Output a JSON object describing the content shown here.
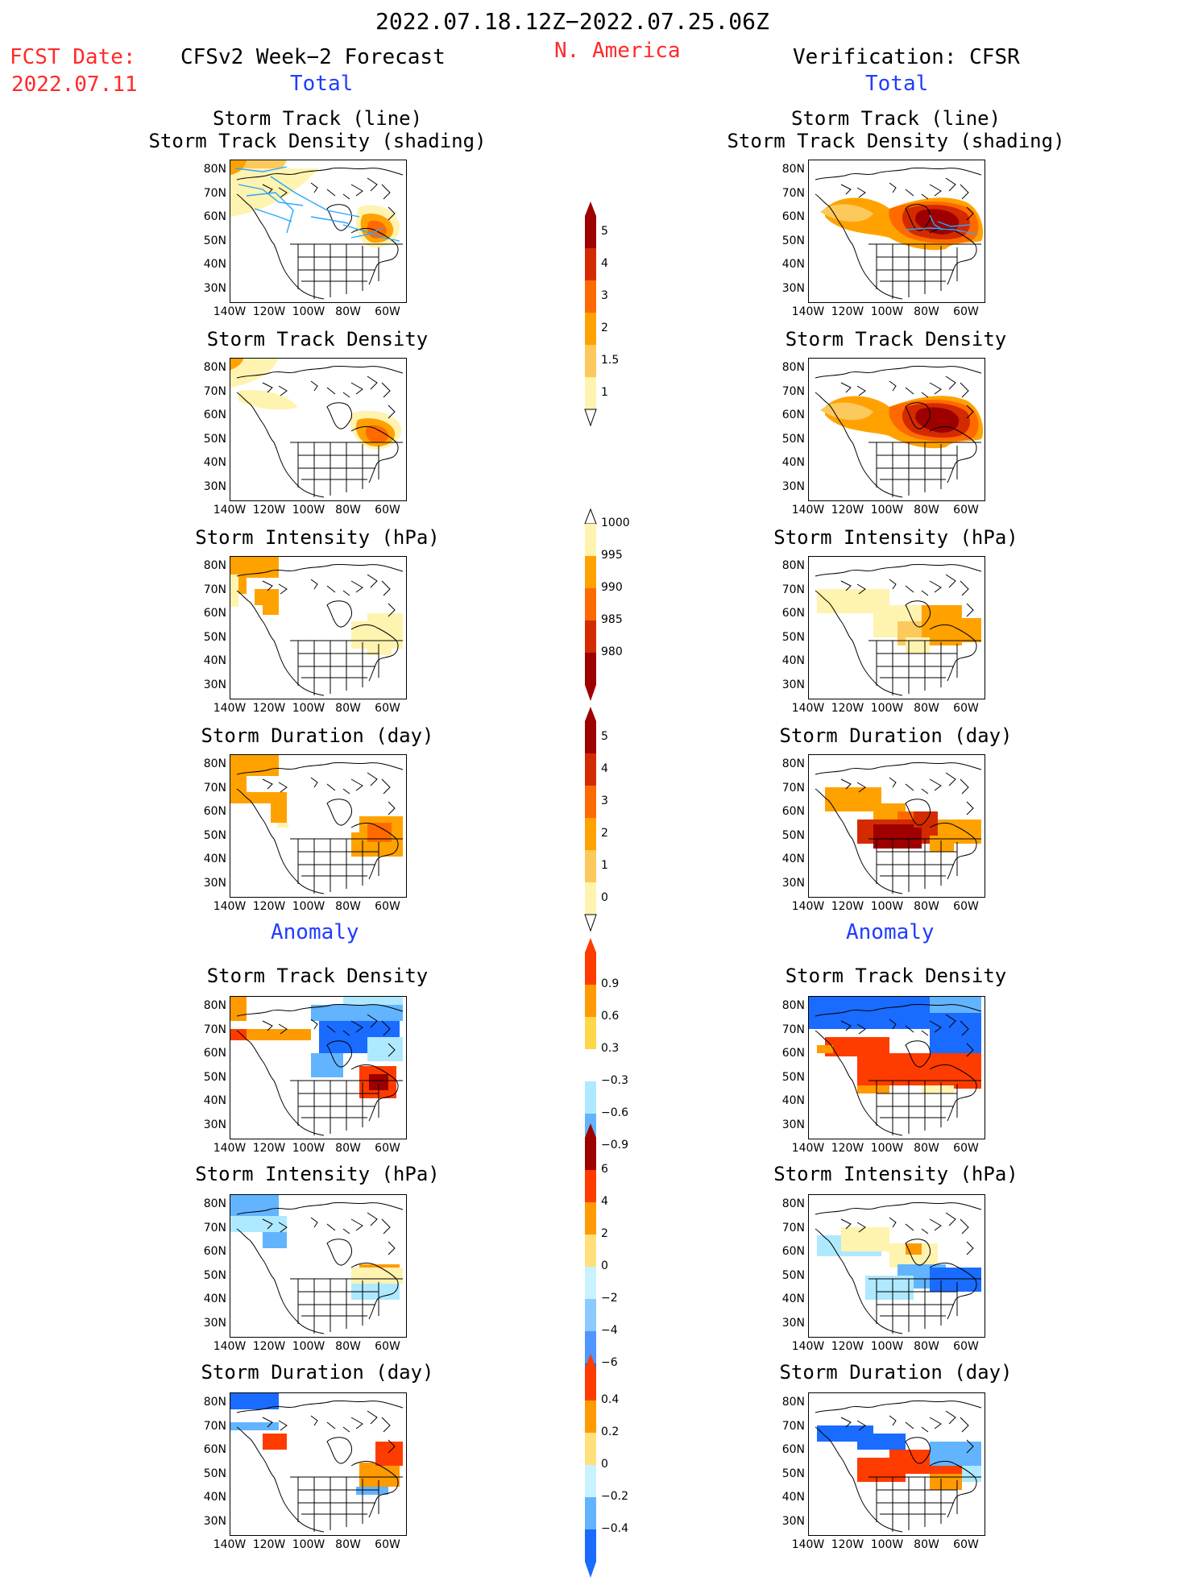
{
  "header": {
    "period": "2022.07.18.12Z−2022.07.25.06Z",
    "fcst_label": "FCST Date:",
    "fcst_date": "2022.07.11",
    "region": "N. America",
    "left_title": "CFSv2 Week−2 Forecast",
    "right_title": "Verification: CFSR",
    "total_label": "Total",
    "anomaly_label": "Anomaly"
  },
  "panel_titles": {
    "track_line": "Storm Track (line)",
    "track_shading": "Storm Track Density (shading)",
    "density": "Storm Track Density",
    "intensity": "Storm Intensity (hPa)",
    "duration": "Storm Duration (day)"
  },
  "axes": {
    "lat_labels": [
      "80N",
      "70N",
      "60N",
      "50N",
      "40N",
      "30N"
    ],
    "lon_labels": [
      "140W",
      "120W",
      "100W",
      "80W",
      "60W"
    ]
  },
  "colorbars": {
    "density_total": {
      "labels": [
        "5",
        "4",
        "3",
        "2",
        "1.5",
        "1"
      ],
      "colors": [
        "#9e0000",
        "#d42a00",
        "#ff6a00",
        "#ffa200",
        "#fcc95c",
        "#fff3b0"
      ]
    },
    "intensity_total": {
      "labels": [
        "1000",
        "995",
        "990",
        "985",
        "980"
      ],
      "colors": [
        "#fff3b0",
        "#ffa200",
        "#ff6a00",
        "#d42a00",
        "#9e0000"
      ]
    },
    "duration_total": {
      "labels": [
        "5",
        "4",
        "3",
        "2",
        "1",
        "0"
      ],
      "colors": [
        "#9e0000",
        "#d42a00",
        "#ff6a00",
        "#ffa200",
        "#fcc95c",
        "#fff3b0"
      ]
    },
    "density_anom": {
      "labels": [
        "0.9",
        "0.6",
        "0.3",
        "−0.3",
        "−0.6",
        "−0.9"
      ],
      "colors": [
        "#ff3c00",
        "#ff9a00",
        "#ffd84a",
        "#ffffff",
        "#aee9ff",
        "#62b4ff",
        "#1a6bff"
      ]
    },
    "intensity_anom": {
      "labels": [
        "6",
        "4",
        "2",
        "0",
        "−2",
        "−4",
        "−6"
      ],
      "colors": [
        "#9e0000",
        "#ff3c00",
        "#ff9a00",
        "#ffe07a",
        "#c8f2ff",
        "#8ccaff",
        "#5096ff",
        "#1a6bff"
      ]
    },
    "duration_anom": {
      "labels": [
        "0.4",
        "0.2",
        "0",
        "−0.2",
        "−0.4"
      ],
      "colors": [
        "#ff3c00",
        "#ff9a00",
        "#ffe07a",
        "#c8f2ff",
        "#62b4ff",
        "#1a6bff"
      ]
    }
  },
  "colors": {
    "track_line": "#2aa6ff",
    "yellow": "#fff3b0",
    "lightorange": "#fcc95c",
    "orange": "#ffa200",
    "darkorange": "#ff6a00",
    "red": "#d42a00",
    "darkred": "#9e0000",
    "anom_pos": "#ff3c00",
    "anom_pos2": "#ff9a00",
    "anom_neg": "#1a6bff",
    "anom_neg2": "#62b4ff",
    "anom_neg3": "#aee9ff"
  }
}
